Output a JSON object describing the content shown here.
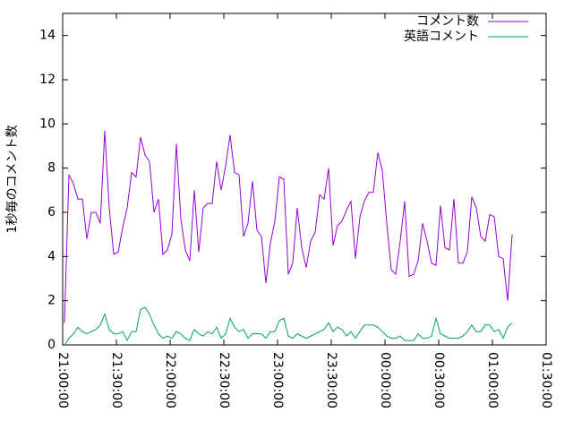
{
  "chart_data": {
    "type": "line",
    "y_label": "1秒毎のコメント数",
    "x": [
      "21:01:00",
      "21:03:30",
      "21:06:00",
      "21:08:30",
      "21:11:00",
      "21:13:30",
      "21:16:00",
      "21:18:30",
      "21:21:00",
      "21:23:30",
      "21:26:00",
      "21:28:30",
      "21:31:00",
      "21:33:30",
      "21:36:00",
      "21:38:30",
      "21:41:00",
      "21:43:30",
      "21:46:00",
      "21:48:30",
      "21:51:00",
      "21:53:30",
      "21:56:00",
      "21:58:30",
      "22:01:00",
      "22:03:30",
      "22:06:00",
      "22:08:30",
      "22:11:00",
      "22:13:30",
      "22:16:00",
      "22:18:30",
      "22:21:00",
      "22:23:30",
      "22:26:00",
      "22:28:30",
      "22:31:00",
      "22:33:30",
      "22:36:00",
      "22:38:30",
      "22:41:00",
      "22:43:30",
      "22:46:00",
      "22:48:30",
      "22:51:00",
      "22:53:30",
      "22:56:00",
      "22:58:30",
      "23:01:00",
      "23:03:30",
      "23:06:00",
      "23:08:30",
      "23:11:00",
      "23:13:30",
      "23:16:00",
      "23:18:30",
      "23:21:00",
      "23:23:30",
      "23:26:00",
      "23:28:30",
      "23:31:00",
      "23:33:30",
      "23:36:00",
      "23:38:30",
      "23:41:00",
      "23:43:30",
      "23:46:00",
      "23:48:30",
      "23:51:00",
      "23:53:30",
      "23:56:00",
      "23:58:30",
      "00:01:00",
      "00:03:30",
      "00:06:00",
      "00:08:30",
      "00:11:00",
      "00:13:30",
      "00:16:00",
      "00:18:30",
      "00:21:00",
      "00:23:30",
      "00:26:00",
      "00:28:30",
      "00:31:00",
      "00:33:30",
      "00:36:00",
      "00:38:30",
      "00:41:00",
      "00:43:30",
      "00:46:00",
      "00:48:30",
      "00:51:00",
      "00:53:30",
      "00:56:00",
      "00:58:30",
      "01:01:00",
      "01:03:30",
      "01:06:00",
      "01:08:30",
      "01:11:00"
    ],
    "series": [
      {
        "name": "コメント数",
        "color": "#9400d3",
        "values": [
          1.0,
          7.7,
          7.3,
          6.6,
          6.6,
          4.8,
          6.0,
          6.0,
          5.5,
          9.7,
          6.2,
          4.1,
          4.2,
          5.3,
          6.2,
          7.8,
          7.6,
          9.4,
          8.6,
          8.3,
          6.0,
          6.6,
          4.1,
          4.3,
          5.0,
          9.1,
          5.7,
          4.3,
          3.8,
          7.0,
          4.2,
          6.2,
          6.4,
          6.4,
          8.3,
          7.0,
          8.1,
          9.5,
          7.8,
          7.7,
          4.9,
          5.5,
          7.4,
          5.2,
          4.9,
          2.8,
          4.6,
          5.6,
          7.6,
          7.5,
          3.2,
          3.7,
          6.2,
          4.4,
          3.5,
          4.7,
          5.1,
          6.8,
          6.6,
          8.0,
          4.5,
          5.4,
          5.6,
          6.1,
          6.5,
          3.9,
          5.8,
          6.5,
          6.9,
          6.9,
          8.7,
          7.9,
          5.5,
          3.4,
          3.2,
          4.7,
          6.5,
          3.1,
          3.2,
          3.8,
          5.5,
          4.7,
          3.7,
          3.6,
          6.3,
          4.4,
          4.3,
          6.6,
          3.7,
          3.7,
          4.2,
          6.7,
          6.2,
          4.9,
          4.7,
          5.9,
          5.8,
          4.0,
          3.9,
          2.0,
          5.0
        ]
      },
      {
        "name": "英語コメント",
        "color": "#009e73",
        "values": [
          0.0,
          0.3,
          0.5,
          0.8,
          0.6,
          0.5,
          0.6,
          0.7,
          0.9,
          1.4,
          0.7,
          0.5,
          0.5,
          0.6,
          0.2,
          0.6,
          0.6,
          1.6,
          1.7,
          1.4,
          0.9,
          0.5,
          0.3,
          0.4,
          0.3,
          0.6,
          0.5,
          0.3,
          0.2,
          0.7,
          0.5,
          0.4,
          0.6,
          0.5,
          0.8,
          0.3,
          0.5,
          1.2,
          0.8,
          0.6,
          0.7,
          0.3,
          0.5,
          0.5,
          0.5,
          0.3,
          0.6,
          0.6,
          1.1,
          1.2,
          0.4,
          0.3,
          0.5,
          0.4,
          0.3,
          0.4,
          0.5,
          0.6,
          0.7,
          1.0,
          0.6,
          0.8,
          0.7,
          0.4,
          0.6,
          0.3,
          0.6,
          0.9,
          0.9,
          0.9,
          0.8,
          0.6,
          0.4,
          0.3,
          0.3,
          0.4,
          0.2,
          0.2,
          0.2,
          0.5,
          0.3,
          0.3,
          0.4,
          1.2,
          0.5,
          0.4,
          0.3,
          0.3,
          0.3,
          0.4,
          0.6,
          0.9,
          0.6,
          0.6,
          0.9,
          0.9,
          0.6,
          0.7,
          0.3,
          0.8,
          1.0
        ]
      }
    ],
    "xlim": [
      "21:00:00",
      "01:30:00"
    ],
    "xticks": [
      "21:00:00",
      "21:30:00",
      "22:00:00",
      "22:30:00",
      "23:00:00",
      "23:30:00",
      "00:00:00",
      "00:30:00",
      "01:00:00",
      "01:30:00"
    ],
    "ylim": [
      0,
      15
    ],
    "yticks": [
      0,
      2,
      4,
      6,
      8,
      10,
      12,
      14
    ],
    "legend": "top-right"
  }
}
